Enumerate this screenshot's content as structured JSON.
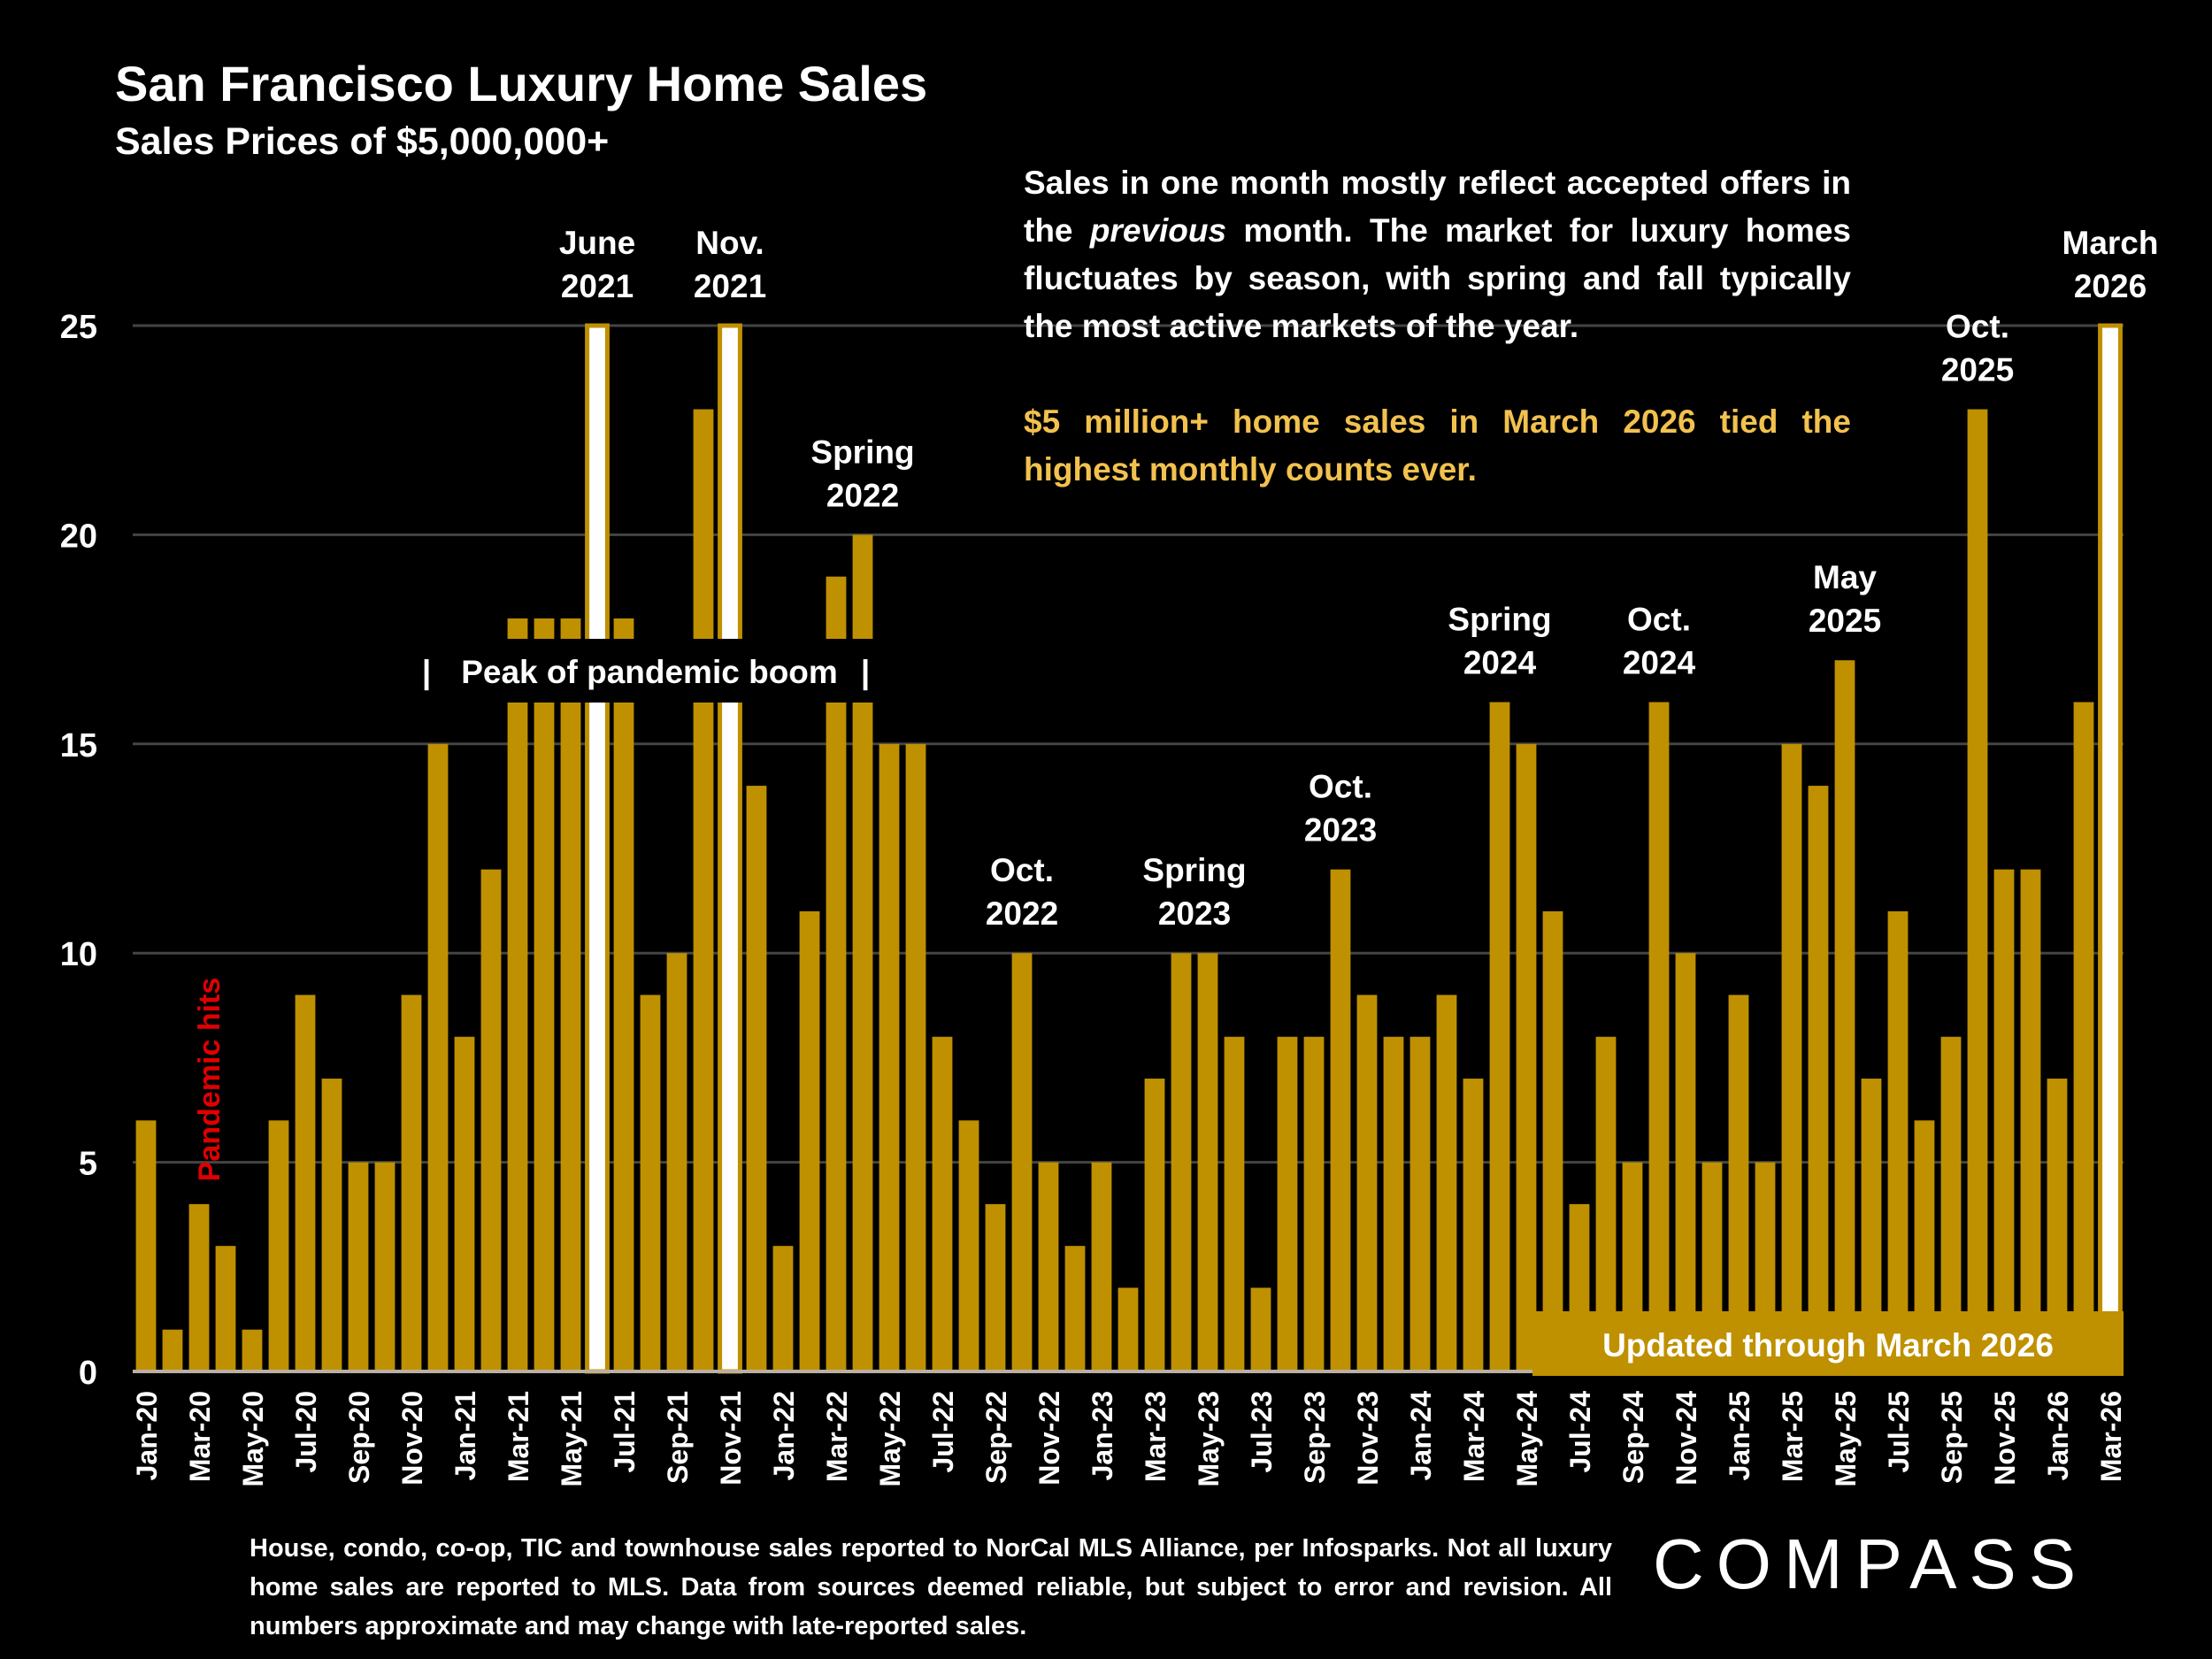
{
  "header": {
    "title": "San Francisco Luxury Home Sales",
    "subtitle": "Sales Prices of $5,000,000+"
  },
  "note": {
    "part1": "Sales in one month mostly reflect accepted offers in the ",
    "part1_italic": "previous",
    "part1_end": " month. The market for luxury homes fluctuates by season, with spring and fall typically the most active markets of the year.",
    "highlight": "$5 million+ home sales in March 2026 tied the highest monthly counts ever."
  },
  "footnote": "House, condo, co-op, TIC and townhouse sales reported to NorCal MLS Alliance, per  Infosparks. Not all luxury home sales are reported to MLS. Data from sources deemed reliable, but subject to error and revision. All numbers approximate and may change with late-reported sales.",
  "logo": "COMPASS",
  "colors": {
    "bar": "#bf9000",
    "highlight_bar": "#ffffff",
    "highlight_text": "#f2c14e",
    "pandemic_text": "#e00000",
    "background": "#000000",
    "grid": "#444444"
  },
  "chart_data": {
    "type": "bar",
    "title": "San Francisco Luxury Home Sales",
    "subtitle": "Sales Prices of $5,000,000+",
    "ylim": [
      0,
      25
    ],
    "yticks": [
      0,
      5,
      10,
      15,
      20,
      25
    ],
    "grid": true,
    "categories": [
      "Jan-20",
      "Feb-20",
      "Mar-20",
      "Apr-20",
      "May-20",
      "Jun-20",
      "Jul-20",
      "Aug-20",
      "Sep-20",
      "Oct-20",
      "Nov-20",
      "Dec-20",
      "Jan-21",
      "Feb-21",
      "Mar-21",
      "Apr-21",
      "May-21",
      "Jun-21",
      "Jul-21",
      "Aug-21",
      "Sep-21",
      "Oct-21",
      "Nov-21",
      "Dec-21",
      "Jan-22",
      "Feb-22",
      "Mar-22",
      "Apr-22",
      "May-22",
      "Jun-22",
      "Jul-22",
      "Aug-22",
      "Sep-22",
      "Oct-22",
      "Nov-22",
      "Dec-22",
      "Jan-23",
      "Feb-23",
      "Mar-23",
      "Apr-23",
      "May-23",
      "Jun-23",
      "Jul-23",
      "Aug-23",
      "Sep-23",
      "Oct-23",
      "Nov-23",
      "Dec-23",
      "Jan-24",
      "Feb-24",
      "Mar-24",
      "Apr-24",
      "May-24",
      "Jun-24",
      "Jul-24",
      "Aug-24",
      "Sep-24",
      "Oct-24",
      "Nov-24",
      "Dec-24",
      "Jan-25",
      "Feb-25",
      "Mar-25",
      "Apr-25",
      "May-25",
      "Jun-25",
      "Jul-25",
      "Aug-25",
      "Sep-25",
      "Oct-25",
      "Nov-25",
      "Dec-25",
      "Jan-26",
      "Feb-26",
      "Mar-26"
    ],
    "values": [
      6,
      1,
      4,
      3,
      1,
      6,
      9,
      7,
      5,
      5,
      9,
      15,
      8,
      12,
      18,
      18,
      18,
      25,
      18,
      9,
      10,
      23,
      25,
      14,
      3,
      11,
      19,
      20,
      15,
      15,
      8,
      6,
      4,
      10,
      5,
      3,
      5,
      2,
      7,
      10,
      10,
      8,
      2,
      8,
      8,
      12,
      9,
      8,
      8,
      9,
      7,
      16,
      15,
      11,
      4,
      8,
      5,
      16,
      10,
      5,
      9,
      5,
      15,
      14,
      17,
      7,
      11,
      6,
      8,
      23,
      12,
      12,
      7,
      16,
      25
    ],
    "highlighted": [
      "Jun-21",
      "Nov-21",
      "Mar-26"
    ],
    "annotations": [
      {
        "month": "Jun-21",
        "lines": [
          "June",
          "2021"
        ]
      },
      {
        "month": "Nov-21",
        "lines": [
          "Nov.",
          "2021"
        ]
      },
      {
        "month": "Apr-22",
        "lines": [
          "Spring",
          "2022"
        ]
      },
      {
        "month": "Oct-22",
        "lines": [
          "Oct.",
          "2022"
        ]
      },
      {
        "month": "Apr-23",
        "lines": [
          "Spring",
          "2023"
        ]
      },
      {
        "month": "Oct-23",
        "lines": [
          "Oct.",
          "2023"
        ]
      },
      {
        "month": "Apr-24",
        "lines": [
          "Spring",
          "2024"
        ]
      },
      {
        "month": "Oct-24",
        "lines": [
          "Oct.",
          "2024"
        ]
      },
      {
        "month": "May-25",
        "lines": [
          "May",
          "2025"
        ]
      },
      {
        "month": "Oct-25",
        "lines": [
          "Oct.",
          "2025"
        ]
      },
      {
        "month": "Mar-26",
        "lines": [
          "March",
          "2026"
        ]
      }
    ],
    "period_label": "Peak of pandemic boom",
    "event_label": "Pandemic hits",
    "updated_label": "Updated through March 2026"
  }
}
